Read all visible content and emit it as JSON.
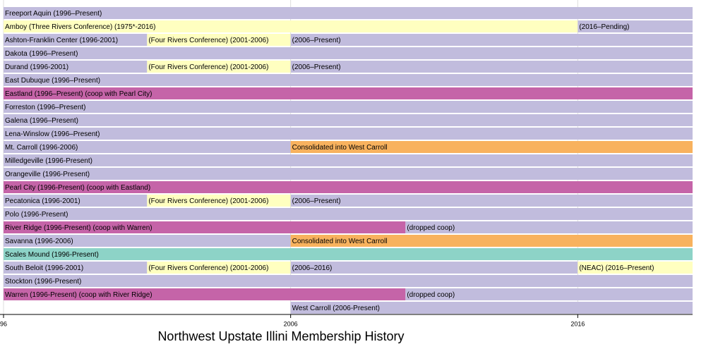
{
  "chart_data": {
    "type": "timeline",
    "title": "Northwest Upstate Illini Membership History",
    "xlim": [
      1996,
      2020
    ],
    "xticks": [
      {
        "value": 1996,
        "label": "96"
      },
      2006,
      2016
    ],
    "grid": true,
    "rows": [
      {
        "segments": [
          {
            "label": "Freeport Aquin (1996–Present)",
            "start": 1996,
            "end": 2020,
            "color": "#c1bcdd"
          }
        ]
      },
      {
        "segments": [
          {
            "label": "Amboy (Three Rivers Conference) (1975*-2016)",
            "start": 1996,
            "end": 2016,
            "color": "#ffffc0"
          },
          {
            "label": "(2016–Pending)",
            "start": 2016,
            "end": 2020,
            "color": "#c1bcdd"
          }
        ]
      },
      {
        "segments": [
          {
            "label": "Ashton-Franklin Center (1996-2001)",
            "start": 1996,
            "end": 2001,
            "color": "#c1bcdd"
          },
          {
            "label": "(Four Rivers Conference) (2001-2006)",
            "start": 2001,
            "end": 2006,
            "color": "#ffffc0"
          },
          {
            "label": "(2006–Present)",
            "start": 2006,
            "end": 2020,
            "color": "#c1bcdd"
          }
        ]
      },
      {
        "segments": [
          {
            "label": "Dakota (1996–Present)",
            "start": 1996,
            "end": 2020,
            "color": "#c1bcdd"
          }
        ]
      },
      {
        "segments": [
          {
            "label": "Durand (1996-2001)",
            "start": 1996,
            "end": 2001,
            "color": "#c1bcdd"
          },
          {
            "label": "(Four Rivers Conference) (2001-2006)",
            "start": 2001,
            "end": 2006,
            "color": "#ffffc0"
          },
          {
            "label": "(2006–Present)",
            "start": 2006,
            "end": 2020,
            "color": "#c1bcdd"
          }
        ]
      },
      {
        "segments": [
          {
            "label": "East Dubuque (1996–Present)",
            "start": 1996,
            "end": 2020,
            "color": "#c1bcdd"
          }
        ]
      },
      {
        "segments": [
          {
            "label": "Eastland (1996–Present) (coop with Pearl City)",
            "start": 1996,
            "end": 2020,
            "color": "#c564a8"
          }
        ]
      },
      {
        "segments": [
          {
            "label": "Forreston (1996–Present)",
            "start": 1996,
            "end": 2020,
            "color": "#c1bcdd"
          }
        ]
      },
      {
        "segments": [
          {
            "label": "Galena (1996–Present)",
            "start": 1996,
            "end": 2020,
            "color": "#c1bcdd"
          }
        ]
      },
      {
        "segments": [
          {
            "label": "Lena-Winslow (1996–Present)",
            "start": 1996,
            "end": 2020,
            "color": "#c1bcdd"
          }
        ]
      },
      {
        "segments": [
          {
            "label": "Mt. Carroll (1996-2006)",
            "start": 1996,
            "end": 2006,
            "color": "#c1bcdd"
          },
          {
            "label": "Consolidated into West Carroll",
            "start": 2006,
            "end": 2020,
            "color": "#f8b25e"
          }
        ]
      },
      {
        "segments": [
          {
            "label": "Milledgeville (1996-Present)",
            "start": 1996,
            "end": 2020,
            "color": "#c1bcdd"
          }
        ]
      },
      {
        "segments": [
          {
            "label": "Orangeville (1996-Present)",
            "start": 1996,
            "end": 2020,
            "color": "#c1bcdd"
          }
        ]
      },
      {
        "segments": [
          {
            "label": "Pearl City (1996-Present) (coop with Eastland)",
            "start": 1996,
            "end": 2020,
            "color": "#c564a8"
          }
        ]
      },
      {
        "segments": [
          {
            "label": "Pecatonica (1996-2001)",
            "start": 1996,
            "end": 2001,
            "color": "#c1bcdd"
          },
          {
            "label": "(Four Rivers Conference) (2001-2006)",
            "start": 2001,
            "end": 2006,
            "color": "#ffffc0"
          },
          {
            "label": "(2006–Present)",
            "start": 2006,
            "end": 2020,
            "color": "#c1bcdd"
          }
        ]
      },
      {
        "segments": [
          {
            "label": "Polo (1996-Present)",
            "start": 1996,
            "end": 2020,
            "color": "#c1bcdd"
          }
        ]
      },
      {
        "segments": [
          {
            "label": "River Ridge (1996-Present) (coop with Warren)",
            "start": 1996,
            "end": 2010,
            "color": "#c564a8"
          },
          {
            "label": "(dropped coop)",
            "start": 2010,
            "end": 2020,
            "color": "#c1bcdd"
          }
        ]
      },
      {
        "segments": [
          {
            "label": "Savanna (1996-2006)",
            "start": 1996,
            "end": 2006,
            "color": "#c1bcdd"
          },
          {
            "label": "Consolidated into West Carroll",
            "start": 2006,
            "end": 2020,
            "color": "#f8b25e"
          }
        ]
      },
      {
        "segments": [
          {
            "label": "Scales Mound (1996-Present)",
            "start": 1996,
            "end": 2020,
            "color": "#8dd3c7"
          }
        ]
      },
      {
        "segments": [
          {
            "label": "South Beloit (1996-2001)",
            "start": 1996,
            "end": 2001,
            "color": "#c1bcdd"
          },
          {
            "label": "(Four Rivers Conference) (2001-2006)",
            "start": 2001,
            "end": 2006,
            "color": "#ffffc0"
          },
          {
            "label": "(2006–2016)",
            "start": 2006,
            "end": 2016,
            "color": "#c1bcdd"
          },
          {
            "label": "(NEAC) (2016–Present)",
            "start": 2016,
            "end": 2020,
            "color": "#ffffc0"
          }
        ]
      },
      {
        "segments": [
          {
            "label": "Stockton (1996-Present)",
            "start": 1996,
            "end": 2020,
            "color": "#c1bcdd"
          }
        ]
      },
      {
        "segments": [
          {
            "label": "Warren (1996-Present) (coop with River Ridge)",
            "start": 1996,
            "end": 2010,
            "color": "#c564a8"
          },
          {
            "label": "(dropped coop)",
            "start": 2010,
            "end": 2020,
            "color": "#c1bcdd"
          }
        ]
      },
      {
        "segments": [
          {
            "label": "West Carroll (2006-Present)",
            "start": 2006,
            "end": 2020,
            "color": "#c1bcdd"
          }
        ]
      }
    ]
  }
}
